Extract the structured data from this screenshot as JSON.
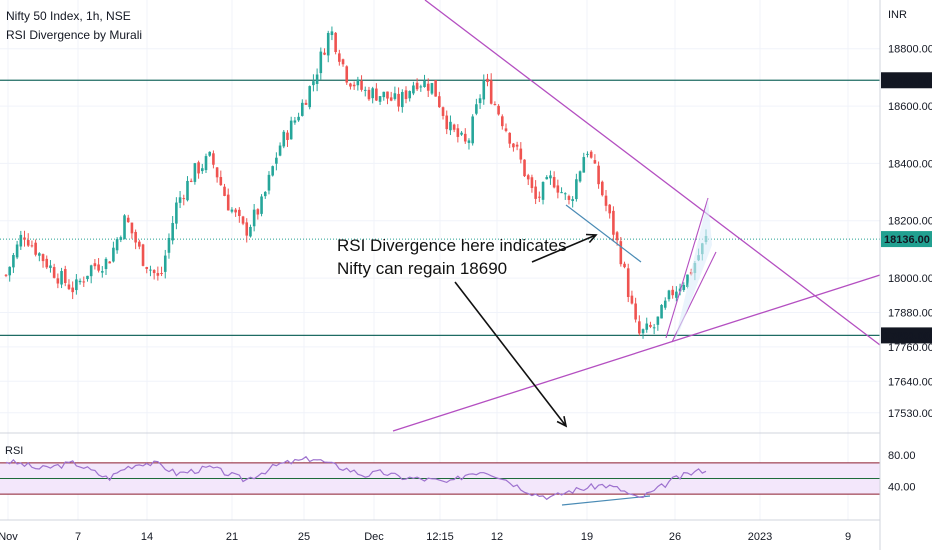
{
  "header": {
    "symbol_line": "Nifty 50 Index, 1h, NSE",
    "study_line": "RSI Divergence by Murali",
    "currency": "INR"
  },
  "chart_data": {
    "type": "candlestick",
    "title": "Nifty 50 Index, 1h, NSE",
    "price_axis": {
      "ticks": [
        "18800.00",
        "18600.00",
        "18400.00",
        "18200.00",
        "18000.00",
        "17880.00",
        "17760.00",
        "17640.00",
        "17530.00"
      ],
      "range": [
        17470,
        18970
      ]
    },
    "horizontal_levels": [
      {
        "value": 18690,
        "label": "18690.00",
        "color": "#1e6b63"
      },
      {
        "value": 17800,
        "label": "17800.00",
        "color": "#1e6b63"
      }
    ],
    "last_price": {
      "value": 18136,
      "label": "18136.00",
      "color": "#21a090"
    },
    "time_axis": [
      "Nov",
      "7",
      "14",
      "21",
      "25",
      "Dec",
      "12:15",
      "12",
      "19",
      "26",
      "2023",
      "9"
    ],
    "price_path": [
      18010,
      18160,
      18080,
      18010,
      17960,
      18040,
      18060,
      18210,
      18070,
      17990,
      18260,
      18370,
      18420,
      18260,
      18160,
      18260,
      18460,
      18560,
      18690,
      18870,
      18700,
      18650,
      18640,
      18610,
      18690,
      18670,
      18520,
      18460,
      18690,
      18560,
      18430,
      18270,
      18350,
      18260,
      18460,
      18280,
      18080,
      17800,
      17830,
      17950,
      18010,
      18136
    ],
    "annotations": [
      {
        "text": "RSI Divergence here indicates"
      },
      {
        "text": "Nifty can regain 18690"
      }
    ],
    "rsi": {
      "name": "RSI",
      "ticks": [
        "80.00",
        "40.00"
      ],
      "upper": 70,
      "middle": 50,
      "lower": 30,
      "values": [
        72,
        68,
        62,
        66,
        70,
        60,
        50,
        64,
        70,
        68,
        56,
        60,
        64,
        56,
        48,
        58,
        68,
        72,
        76,
        68,
        62,
        54,
        58,
        52,
        50,
        48,
        44,
        56,
        60,
        52,
        40,
        30,
        26,
        34,
        38,
        42,
        36,
        24,
        34,
        48,
        56,
        62
      ]
    },
    "colors": {
      "up": "#26a69a",
      "down": "#ef5350",
      "trendline": "#b44fc1",
      "rsi_line": "#9e72cf",
      "rsi_band": "#f3e7fb"
    }
  }
}
